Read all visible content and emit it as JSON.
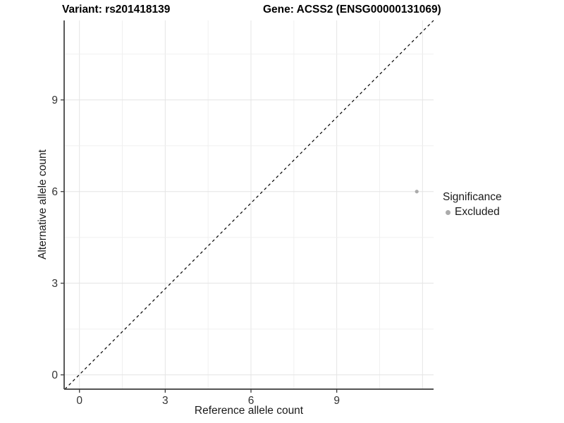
{
  "figure": {
    "title_left": "Variant: rs201418139",
    "title_right": "Gene: ACSS2 (ENSG00000131069)"
  },
  "chart_data": {
    "type": "scatter",
    "title": "Variant: rs201418139  /  Gene: ACSS2 (ENSG00000131069)",
    "xlabel": "Reference allele count",
    "ylabel": "Alternative allele count",
    "x_ticks": [
      0,
      3,
      6,
      9
    ],
    "y_ticks": [
      0,
      3,
      6,
      9
    ],
    "xlim": [
      -0.6,
      12.4
    ],
    "ylim": [
      -0.5,
      11.6
    ],
    "grid": "major and minor, light gray on white panel",
    "points": [
      {
        "x": 11.8,
        "y": 6,
        "series": "Excluded"
      }
    ],
    "reference_line": {
      "meaning": "identity y = x diagonal",
      "style": "dashed",
      "color": "#000000"
    },
    "legend": {
      "title": "Significance",
      "position": "right",
      "items": [
        {
          "label": "Excluded",
          "color": "#ababab"
        }
      ]
    },
    "colors": {
      "point": "#ababab",
      "grid_major": "#e4e4e4",
      "grid_minor": "#f0f0f0",
      "axis_line": "#3c3c3c",
      "tick_label": "#333333",
      "text": "#1a1a1a"
    }
  }
}
